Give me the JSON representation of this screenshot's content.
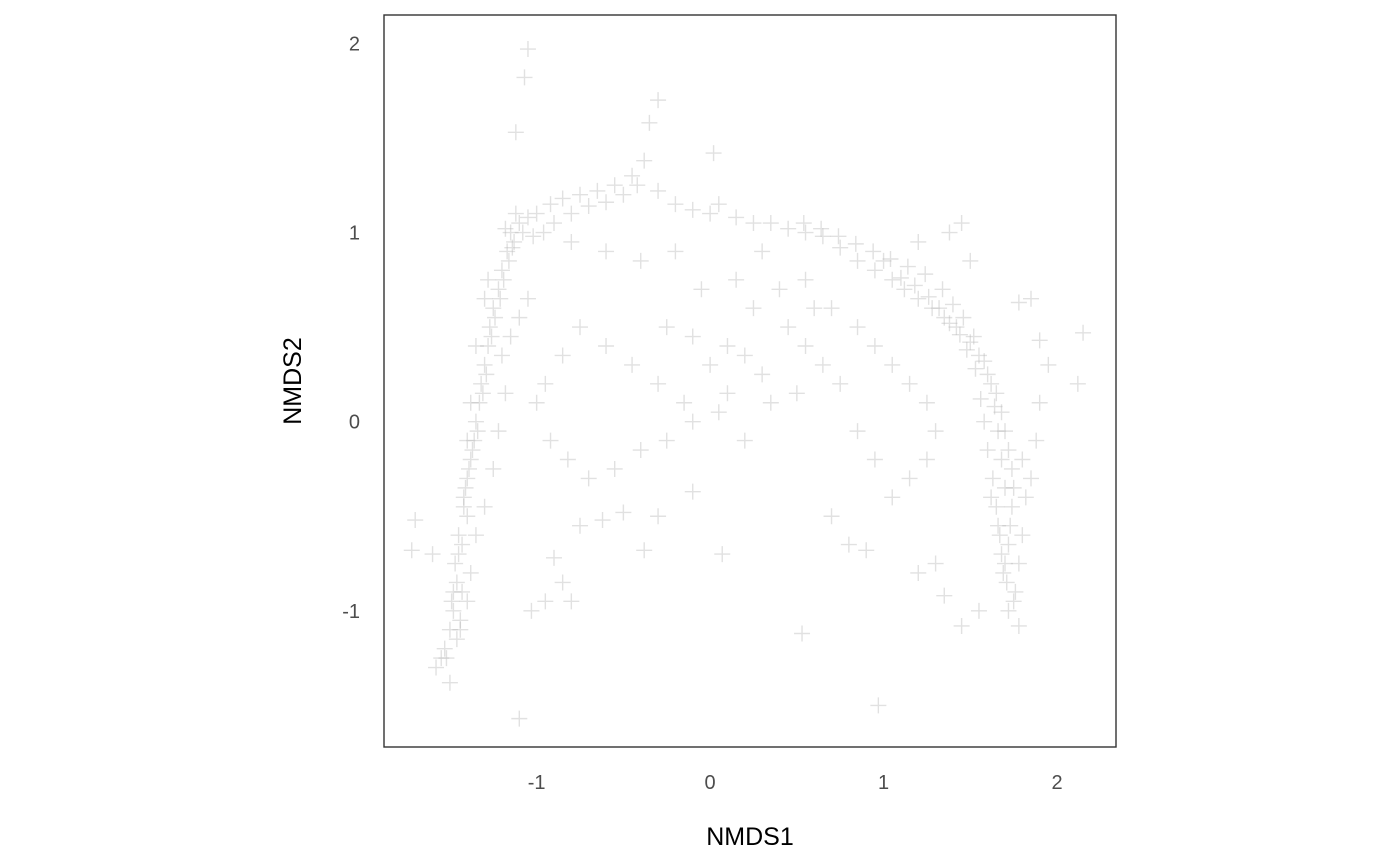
{
  "chart_data": {
    "type": "scatter",
    "title": "",
    "xlabel": "NMDS1",
    "ylabel": "NMDS2",
    "xlim": [
      -1.88,
      2.34
    ],
    "ylim": [
      -1.72,
      2.15
    ],
    "x_ticks": [
      -1,
      0,
      1,
      2
    ],
    "y_ticks": [
      -1,
      0,
      1,
      2
    ],
    "x_tick_labels": [
      "-1",
      "0",
      "1",
      "2"
    ],
    "y_tick_labels": [
      "-1",
      "0",
      "1",
      "2"
    ],
    "grid": false,
    "legend": "none",
    "marker": "plus",
    "marker_color": "#bdbdbd",
    "series": [
      {
        "values": [
          [
            -1.45,
            -0.6
          ],
          [
            -1.47,
            -0.75
          ],
          [
            -1.43,
            -0.9
          ],
          [
            -1.48,
            -1.0
          ],
          [
            -1.46,
            -1.15
          ],
          [
            -1.5,
            -1.38
          ],
          [
            -1.52,
            -1.25
          ],
          [
            -1.44,
            -1.1
          ],
          [
            -1.42,
            -0.45
          ],
          [
            -1.4,
            -0.3
          ],
          [
            -1.38,
            -0.2
          ],
          [
            -1.36,
            -0.1
          ],
          [
            -1.35,
            0.0
          ],
          [
            -1.33,
            0.1
          ],
          [
            -1.32,
            0.2
          ],
          [
            -1.3,
            0.3
          ],
          [
            -1.28,
            0.4
          ],
          [
            -1.27,
            0.5
          ],
          [
            -1.25,
            0.6
          ],
          [
            -1.22,
            0.7
          ],
          [
            -1.2,
            0.8
          ],
          [
            -1.17,
            0.9
          ],
          [
            -1.15,
            1.0
          ],
          [
            -1.1,
            1.05
          ],
          [
            -1.05,
            1.08
          ],
          [
            -1.0,
            1.1
          ],
          [
            -0.92,
            1.15
          ],
          [
            -0.85,
            1.18
          ],
          [
            -0.75,
            1.2
          ],
          [
            -0.65,
            1.22
          ],
          [
            -0.55,
            1.25
          ],
          [
            -0.45,
            1.3
          ],
          [
            -0.38,
            1.38
          ],
          [
            -0.3,
            1.22
          ],
          [
            -0.2,
            1.15
          ],
          [
            -0.1,
            1.12
          ],
          [
            0.0,
            1.1
          ],
          [
            0.05,
            1.15
          ],
          [
            0.15,
            1.08
          ],
          [
            0.25,
            1.05
          ],
          [
            0.35,
            1.05
          ],
          [
            0.45,
            1.02
          ],
          [
            0.55,
            1.0
          ],
          [
            0.65,
            0.98
          ],
          [
            0.75,
            0.92
          ],
          [
            0.85,
            0.85
          ],
          [
            0.95,
            0.8
          ],
          [
            1.05,
            0.75
          ],
          [
            1.12,
            0.7
          ],
          [
            1.2,
            0.65
          ],
          [
            1.28,
            0.6
          ],
          [
            1.35,
            0.55
          ],
          [
            1.42,
            0.5
          ],
          [
            1.5,
            0.42
          ],
          [
            1.55,
            0.35
          ],
          [
            1.6,
            0.25
          ],
          [
            1.65,
            0.15
          ],
          [
            1.68,
            0.05
          ],
          [
            1.7,
            -0.05
          ],
          [
            1.72,
            -0.15
          ],
          [
            1.74,
            -0.25
          ],
          [
            1.75,
            -0.35
          ],
          [
            1.74,
            -0.45
          ],
          [
            1.73,
            -0.55
          ],
          [
            1.72,
            -0.65
          ],
          [
            1.7,
            -0.75
          ],
          [
            1.71,
            -0.85
          ],
          [
            1.75,
            -0.95
          ],
          [
            1.78,
            -1.08
          ],
          [
            1.85,
            -0.3
          ],
          [
            1.88,
            -0.1
          ],
          [
            1.9,
            0.1
          ],
          [
            -1.05,
            1.97
          ],
          [
            -1.07,
            1.82
          ],
          [
            -1.12,
            1.53
          ],
          [
            -0.3,
            1.7
          ],
          [
            -0.35,
            1.58
          ],
          [
            0.02,
            1.42
          ],
          [
            -1.7,
            -0.52
          ],
          [
            -1.72,
            -0.68
          ],
          [
            -1.6,
            -0.7
          ],
          [
            -1.55,
            -1.25
          ],
          [
            -1.58,
            -1.3
          ],
          [
            -1.1,
            -1.57
          ],
          [
            -1.03,
            -1.0
          ],
          [
            -0.95,
            -0.95
          ],
          [
            -0.85,
            -0.85
          ],
          [
            -0.8,
            -0.95
          ],
          [
            -0.9,
            -0.72
          ],
          [
            -0.75,
            -0.55
          ],
          [
            -0.62,
            -0.52
          ],
          [
            -0.5,
            -0.48
          ],
          [
            -0.38,
            -0.68
          ],
          [
            -0.3,
            -0.5
          ],
          [
            -0.1,
            -0.37
          ],
          [
            0.07,
            -0.7
          ],
          [
            0.53,
            -1.12
          ],
          [
            0.97,
            -1.5
          ],
          [
            0.9,
            -0.68
          ],
          [
            0.8,
            -0.65
          ],
          [
            0.7,
            -0.5
          ],
          [
            1.2,
            -0.8
          ],
          [
            1.3,
            -0.75
          ],
          [
            1.35,
            -0.92
          ],
          [
            1.45,
            -1.08
          ],
          [
            1.55,
            -1.0
          ],
          [
            2.12,
            0.2
          ],
          [
            2.15,
            0.47
          ],
          [
            1.95,
            0.3
          ],
          [
            1.9,
            0.43
          ],
          [
            1.85,
            0.65
          ],
          [
            1.78,
            0.63
          ],
          [
            1.5,
            0.85
          ],
          [
            1.38,
            1.0
          ],
          [
            1.45,
            1.05
          ],
          [
            1.2,
            0.95
          ],
          [
            1.0,
            0.85
          ],
          [
            -0.25,
            0.5
          ],
          [
            -0.1,
            0.45
          ],
          [
            0.0,
            0.3
          ],
          [
            0.1,
            0.4
          ],
          [
            0.2,
            0.35
          ],
          [
            0.3,
            0.25
          ],
          [
            0.45,
            0.5
          ],
          [
            0.55,
            0.4
          ],
          [
            0.65,
            0.3
          ],
          [
            0.75,
            0.2
          ],
          [
            0.5,
            0.15
          ],
          [
            0.35,
            0.1
          ],
          [
            0.2,
            -0.1
          ],
          [
            0.05,
            0.05
          ],
          [
            -0.15,
            0.1
          ],
          [
            -0.3,
            0.2
          ],
          [
            -0.45,
            0.3
          ],
          [
            -0.6,
            0.4
          ],
          [
            -0.75,
            0.5
          ],
          [
            -0.85,
            0.35
          ],
          [
            -0.95,
            0.2
          ],
          [
            -1.0,
            0.1
          ],
          [
            -0.92,
            -0.1
          ],
          [
            -0.82,
            -0.2
          ],
          [
            -0.7,
            -0.3
          ],
          [
            -0.55,
            -0.25
          ],
          [
            -0.4,
            -0.15
          ],
          [
            -0.25,
            -0.1
          ],
          [
            -0.1,
            0.0
          ],
          [
            0.1,
            0.15
          ],
          [
            0.25,
            0.6
          ],
          [
            0.4,
            0.7
          ],
          [
            0.55,
            0.75
          ],
          [
            0.7,
            0.6
          ],
          [
            0.85,
            0.5
          ],
          [
            0.95,
            0.4
          ],
          [
            1.05,
            0.3
          ],
          [
            1.15,
            0.2
          ],
          [
            1.25,
            0.1
          ],
          [
            1.3,
            -0.05
          ],
          [
            1.25,
            -0.2
          ],
          [
            1.15,
            -0.3
          ],
          [
            1.05,
            -0.4
          ],
          [
            0.95,
            -0.2
          ],
          [
            0.85,
            -0.05
          ],
          [
            -0.2,
            0.9
          ],
          [
            -0.4,
            0.85
          ],
          [
            -0.6,
            0.9
          ],
          [
            -0.8,
            0.95
          ],
          [
            0.6,
            0.6
          ],
          [
            0.3,
            0.9
          ],
          [
            0.15,
            0.75
          ],
          [
            -0.05,
            0.7
          ],
          [
            -1.4,
            -0.5
          ],
          [
            -1.43,
            -0.65
          ],
          [
            -1.46,
            -0.85
          ],
          [
            -1.49,
            -0.95
          ],
          [
            -1.44,
            -1.05
          ],
          [
            -1.41,
            -0.35
          ],
          [
            -1.39,
            -0.25
          ],
          [
            -1.37,
            -0.15
          ],
          [
            -1.34,
            -0.05
          ],
          [
            -1.31,
            0.15
          ],
          [
            -1.29,
            0.25
          ],
          [
            -1.26,
            0.45
          ],
          [
            -1.24,
            0.55
          ],
          [
            -1.21,
            0.65
          ],
          [
            -1.19,
            0.75
          ],
          [
            -1.16,
            0.85
          ],
          [
            -1.13,
            0.95
          ],
          [
            -1.3,
            0.65
          ],
          [
            -1.28,
            0.75
          ],
          [
            -1.35,
            0.4
          ],
          [
            -1.38,
            0.1
          ],
          [
            -1.4,
            -0.1
          ],
          [
            -1.42,
            -0.4
          ],
          [
            -1.45,
            -0.7
          ],
          [
            -1.48,
            -0.9
          ],
          [
            -1.5,
            -1.1
          ],
          [
            -1.53,
            -1.2
          ],
          [
            -1.2,
            0.35
          ],
          [
            -1.15,
            0.45
          ],
          [
            -1.1,
            0.55
          ],
          [
            -1.05,
            0.65
          ],
          [
            -1.18,
            0.15
          ],
          [
            -1.22,
            -0.05
          ],
          [
            -1.25,
            -0.25
          ],
          [
            -1.3,
            -0.45
          ],
          [
            -1.35,
            -0.6
          ],
          [
            -1.38,
            -0.8
          ],
          [
            -1.4,
            -0.95
          ],
          [
            1.62,
            -0.4
          ],
          [
            1.66,
            -0.55
          ],
          [
            1.68,
            -0.7
          ],
          [
            1.69,
            -0.8
          ],
          [
            1.67,
            -0.6
          ],
          [
            1.65,
            -0.45
          ],
          [
            1.63,
            -0.3
          ],
          [
            1.6,
            -0.15
          ],
          [
            1.58,
            0.0
          ],
          [
            1.56,
            0.12
          ],
          [
            1.53,
            0.28
          ],
          [
            1.48,
            0.38
          ],
          [
            1.44,
            0.46
          ],
          [
            1.38,
            0.52
          ],
          [
            1.32,
            0.6
          ],
          [
            1.26,
            0.66
          ],
          [
            1.18,
            0.72
          ],
          [
            1.1,
            0.76
          ],
          [
            1.8,
            -0.2
          ],
          [
            1.82,
            -0.4
          ],
          [
            1.8,
            -0.6
          ],
          [
            1.78,
            -0.75
          ],
          [
            1.76,
            -0.9
          ],
          [
            1.72,
            -1.0
          ],
          [
            1.7,
            -0.35
          ],
          [
            1.68,
            -0.2
          ],
          [
            1.66,
            -0.05
          ],
          [
            1.64,
            0.08
          ],
          [
            1.62,
            0.2
          ],
          [
            1.58,
            0.32
          ],
          [
            1.52,
            0.45
          ],
          [
            1.46,
            0.55
          ],
          [
            1.4,
            0.62
          ],
          [
            1.34,
            0.7
          ],
          [
            1.24,
            0.78
          ],
          [
            1.14,
            0.82
          ],
          [
            1.04,
            0.86
          ],
          [
            0.94,
            0.9
          ],
          [
            0.84,
            0.94
          ],
          [
            0.74,
            0.98
          ],
          [
            0.64,
            1.02
          ],
          [
            0.54,
            1.05
          ],
          [
            -0.9,
            1.05
          ],
          [
            -0.8,
            1.1
          ],
          [
            -0.7,
            1.14
          ],
          [
            -0.6,
            1.16
          ],
          [
            -0.5,
            1.2
          ],
          [
            -0.42,
            1.25
          ],
          [
            -1.12,
            1.1
          ],
          [
            -1.08,
            1.0
          ],
          [
            -1.02,
            0.98
          ],
          [
            -0.96,
            1.0
          ],
          [
            -1.14,
            0.92
          ],
          [
            -1.18,
            1.02
          ]
        ]
      }
    ]
  }
}
